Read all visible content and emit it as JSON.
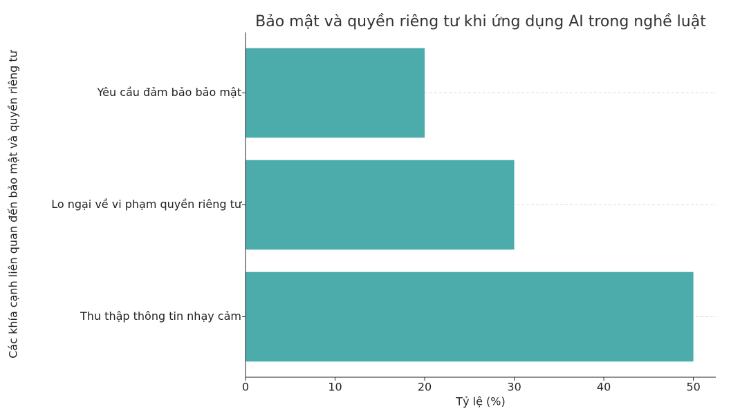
{
  "chart_data": {
    "type": "barh",
    "title": "Bảo mật và quyền riêng tư khi ứng dụng AI trong nghề luật",
    "xlabel": "Tỷ lệ (%)",
    "ylabel": "Các khía cạnh liên quan đến bảo mật và quyền riêng tư",
    "categories": [
      "Yêu cầu đảm bảo bảo mật",
      "Lo ngại về vi phạm quyền riêng tư",
      "Thu thập thông tin nhạy cảm"
    ],
    "values": [
      20,
      30,
      50
    ],
    "color": "#4bacab",
    "xlim": [
      0,
      52.5
    ],
    "xticks": [
      0,
      10,
      20,
      30,
      40,
      50
    ],
    "grid": true
  }
}
